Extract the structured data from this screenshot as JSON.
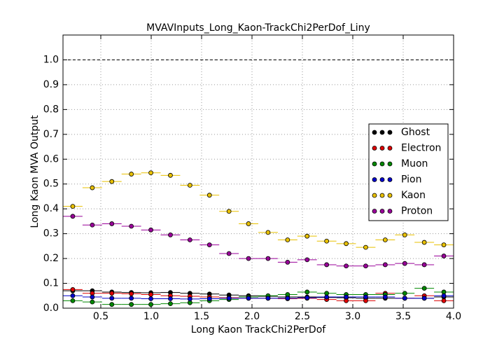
{
  "chart_data": {
    "type": "scatter",
    "title": "MVAVInputs_Long_Kaon-TrackChi2PerDof_Liny",
    "xlabel": "Long Kaon TrackChi2PerDof",
    "ylabel": "Long Kaon MVA Output",
    "bins": [
      0.125,
      0.31875,
      0.5125,
      0.70625,
      0.9,
      1.09375,
      1.2875,
      1.48125,
      1.675,
      1.86875,
      2.0625,
      2.25625,
      2.45,
      2.64375,
      2.8375,
      3.03125,
      3.225,
      3.41875,
      3.6125,
      3.80625,
      4.0
    ],
    "series": [
      {
        "name": "Ghost",
        "color": "#000000",
        "values": [
          0.07,
          0.07,
          0.065,
          0.063,
          0.062,
          0.063,
          0.06,
          0.057,
          0.053,
          0.05,
          0.048,
          0.045,
          0.045,
          0.043,
          0.042,
          0.04,
          0.04,
          0.04,
          0.04,
          0.045
        ]
      },
      {
        "name": "Electron",
        "color": "#dd0000",
        "values": [
          0.075,
          0.06,
          0.06,
          0.058,
          0.055,
          0.05,
          0.048,
          0.045,
          0.042,
          0.04,
          0.04,
          0.038,
          0.04,
          0.035,
          0.03,
          0.03,
          0.06,
          0.04,
          0.05,
          0.03
        ]
      },
      {
        "name": "Muon",
        "color": "#008800",
        "values": [
          0.03,
          0.025,
          0.015,
          0.015,
          0.015,
          0.018,
          0.022,
          0.03,
          0.035,
          0.045,
          0.05,
          0.055,
          0.065,
          0.06,
          0.055,
          0.055,
          0.055,
          0.06,
          0.08,
          0.065
        ]
      },
      {
        "name": "Pion",
        "color": "#0000cc",
        "values": [
          0.05,
          0.045,
          0.04,
          0.04,
          0.038,
          0.038,
          0.037,
          0.038,
          0.04,
          0.04,
          0.04,
          0.04,
          0.042,
          0.045,
          0.045,
          0.045,
          0.045,
          0.04,
          0.04,
          0.05
        ]
      },
      {
        "name": "Kaon",
        "color": "#e8c000",
        "values": [
          0.41,
          0.485,
          0.51,
          0.54,
          0.545,
          0.535,
          0.495,
          0.455,
          0.39,
          0.34,
          0.305,
          0.275,
          0.29,
          0.27,
          0.26,
          0.245,
          0.275,
          0.295,
          0.265,
          0.255
        ]
      },
      {
        "name": "Proton",
        "color": "#990099",
        "values": [
          0.37,
          0.335,
          0.34,
          0.33,
          0.315,
          0.295,
          0.275,
          0.255,
          0.22,
          0.2,
          0.2,
          0.185,
          0.195,
          0.175,
          0.17,
          0.17,
          0.175,
          0.18,
          0.175,
          0.21
        ]
      }
    ],
    "xlim": [
      0.125,
      4.0
    ],
    "ylim": [
      0,
      1.1
    ],
    "xticks": [
      0.5,
      {
        "value": 1,
        "label": "1.0"
      },
      1.5,
      {
        "value": 2,
        "label": "2.0"
      },
      2.5,
      {
        "value": 3,
        "label": "3.0"
      },
      3.5,
      {
        "value": 4,
        "label": "4.0"
      }
    ],
    "yticks": [
      {
        "value": 0,
        "label": "0.0"
      },
      0.1,
      0.2,
      0.3,
      0.4,
      0.5,
      0.6,
      0.7,
      0.8,
      0.9,
      {
        "value": 1,
        "label": "1.0"
      }
    ],
    "hline": 1,
    "grid": true,
    "legend": "right"
  }
}
